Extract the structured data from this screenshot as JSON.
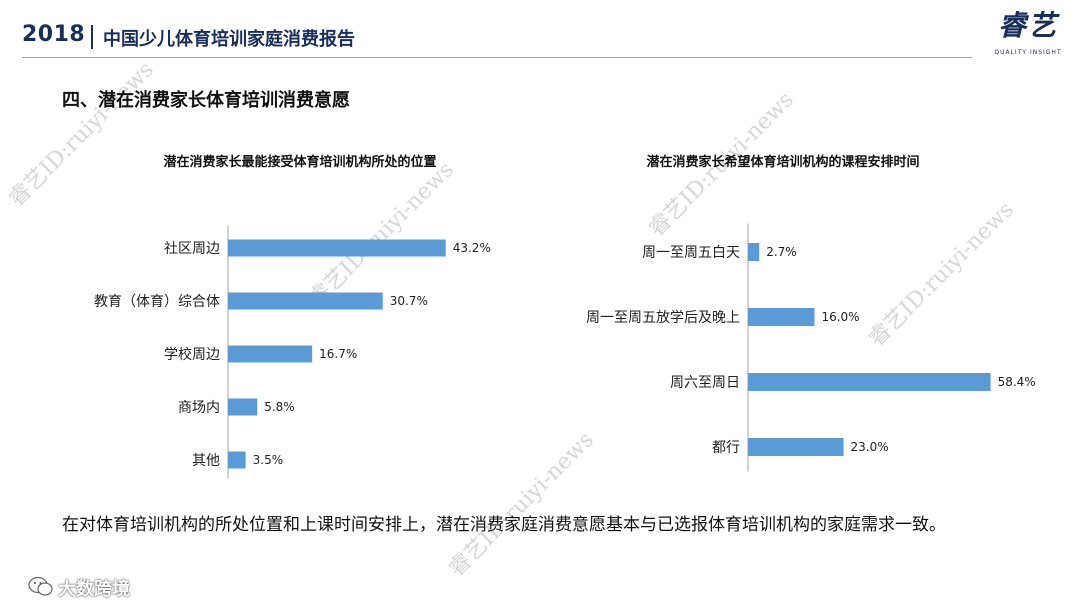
{
  "header": {
    "year": "2018",
    "report_title": "中国少儿体育培训家庭消费报告",
    "logo_glyphs": "睿艺",
    "logo_sub": "QUALITY INSIGHT"
  },
  "section_title": "四、潜在消费家长体育培训消费意愿",
  "chart_data": [
    {
      "type": "bar",
      "orientation": "horizontal",
      "title": "潜在消费家长最能接受体育培训机构所处的位置",
      "categories": [
        "社区周边",
        "教育（体育）综合体",
        "学校周边",
        "商场内",
        "其他"
      ],
      "values": [
        43.2,
        30.7,
        16.7,
        5.8,
        3.5
      ],
      "value_labels": [
        "43.2%",
        "30.7%",
        "16.7%",
        "5.8%",
        "3.5%"
      ],
      "xlim": [
        0,
        50
      ],
      "bar_color": "#5b9bd5"
    },
    {
      "type": "bar",
      "orientation": "horizontal",
      "title": "潜在消费家长希望体育培训机构的课程安排时间",
      "categories": [
        "周一至周五白天",
        "周一至周五放学后及晚上",
        "周六至周日",
        "都行"
      ],
      "values": [
        2.7,
        16.0,
        58.4,
        23.0
      ],
      "value_labels": [
        "2.7%",
        "16.0%",
        "58.4%",
        "23.0%"
      ],
      "xlim": [
        0,
        65
      ],
      "bar_color": "#5b9bd5"
    }
  ],
  "conclusion": "在对体育培训机构的所处位置和上课时间安排上，潜在消费家庭消费意愿基本与已选报体育培训机构的家庭需求一致。",
  "footer": {
    "brand": "大数跨境"
  },
  "watermark": "睿艺ID:ruiyi-news"
}
